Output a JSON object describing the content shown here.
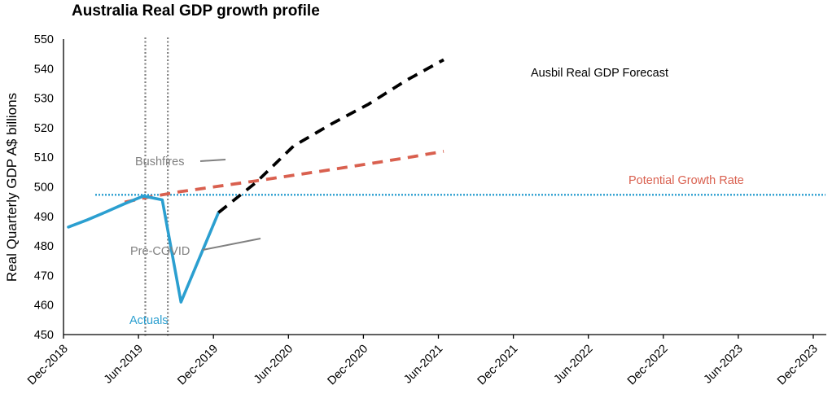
{
  "chart_data": {
    "type": "line",
    "title": "Australia Real GDP growth profile",
    "xlabel": "",
    "ylabel": "Real Quarterly GDP A$ billions",
    "ylim": [
      450,
      550
    ],
    "yticks": [
      450,
      460,
      470,
      480,
      490,
      500,
      510,
      520,
      530,
      540,
      550
    ],
    "xticks": [
      "Dec-2018",
      "Jun-2019",
      "Dec-2019",
      "Jun-2020",
      "Dec-2020",
      "Jun-2021",
      "Dec-2021",
      "Jun-2022",
      "Dec-2022",
      "Jun-2023",
      "Dec-2023"
    ],
    "grid": false,
    "x_unit": "quarters since Dec-2018",
    "series": [
      {
        "name": "Actuals",
        "color": "#2b9fd0",
        "style": "solid",
        "x": [
          0,
          0.5,
          1,
          1.5,
          2,
          2.5,
          3,
          4
        ],
        "y": [
          486.4,
          488.8,
          491.5,
          494.3,
          496.9,
          495.6,
          461.0,
          491.3
        ]
      },
      {
        "name": "Potential Growth Rate",
        "color": "#d9604f",
        "style": "dashed",
        "x": [
          1.5,
          2,
          2.5,
          3,
          4,
          5,
          6,
          7,
          8,
          9,
          10
        ],
        "y": [
          494.8,
          496.2,
          497.3,
          498.4,
          500.2,
          502.0,
          503.9,
          505.8,
          507.8,
          509.8,
          512.0
        ]
      },
      {
        "name": "Ausbil Real GDP Forecast",
        "color": "#000000",
        "style": "dashed",
        "x": [
          4,
          5,
          6,
          7,
          8,
          9,
          10
        ],
        "y": [
          491.3,
          501.5,
          513.8,
          521.2,
          528.0,
          536.0,
          543.0
        ]
      },
      {
        "name": "Pre-COVID level",
        "color": "#2b9fd0",
        "style": "dotted",
        "x": [
          0.35,
          10.1
        ],
        "y": [
          497.3,
          497.3
        ]
      }
    ],
    "vlines": [
      {
        "label": "Bushfires",
        "x": 2.05
      },
      {
        "label": "Pre-COVID",
        "x": 2.65
      }
    ],
    "annotations": [
      {
        "text": "Ausbil Real GDP Forecast",
        "color": "#000000"
      },
      {
        "text": "Potential Growth Rate",
        "color": "#d9604f"
      },
      {
        "text": "Bushfires",
        "color": "#808080"
      },
      {
        "text": "Pre-COVID",
        "color": "#808080"
      },
      {
        "text": "Actuals",
        "color": "#2b9fd0"
      }
    ]
  }
}
